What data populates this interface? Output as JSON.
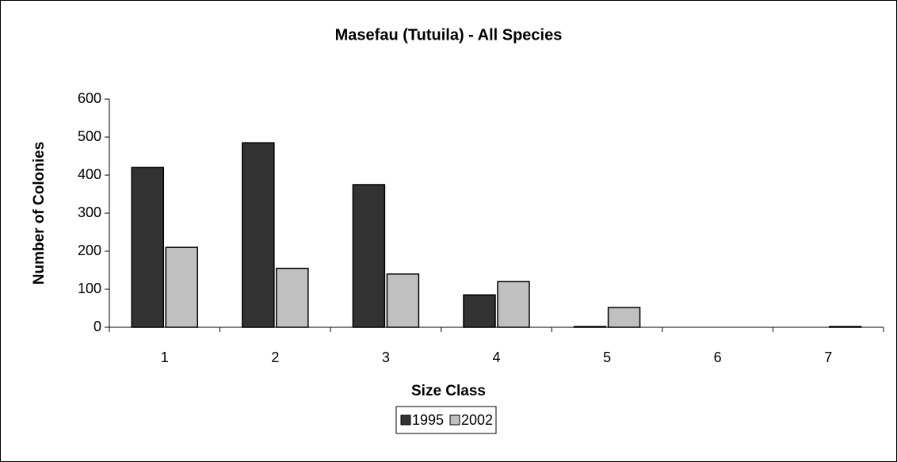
{
  "chart_data": {
    "type": "bar",
    "title": "Masefau (Tutuila) - All Species",
    "x_label": "Size Class",
    "y_label": "Number of Colonies",
    "categories": [
      "1",
      "2",
      "3",
      "4",
      "5",
      "6",
      "7"
    ],
    "series": [
      {
        "name": "1995",
        "color": "#333333",
        "values": [
          420,
          485,
          375,
          85,
          2,
          0,
          0
        ]
      },
      {
        "name": "2002",
        "color": "#c0c0c0",
        "values": [
          210,
          155,
          140,
          120,
          52,
          0,
          2
        ]
      }
    ],
    "ylim": [
      0,
      600
    ],
    "yticks": [
      0,
      100,
      200,
      300,
      400,
      500,
      600
    ],
    "grid": false,
    "legend": "bottom"
  }
}
